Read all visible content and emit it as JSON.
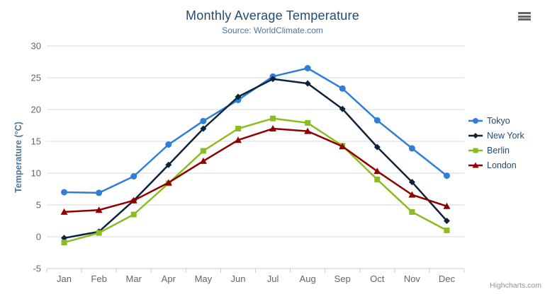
{
  "header": {
    "title": "Monthly Average Temperature",
    "subtitle": "Source: WorldClimate.com"
  },
  "icons": {
    "menu": "hamburger-icon"
  },
  "credit": {
    "label": "Highcharts.com"
  },
  "colors": {
    "title": "#274b6d",
    "subtitle": "#4d759e",
    "axis_label": "#666666",
    "axis_title": "#4d759e",
    "grid": "#d8d8d8",
    "axis_line": "#c0d0e0",
    "credit": "#909090",
    "legend_text": "#274b6d"
  },
  "chart_data": {
    "type": "line",
    "title": "Monthly Average Temperature",
    "subtitle": "Source: WorldClimate.com",
    "categories": [
      "Jan",
      "Feb",
      "Mar",
      "Apr",
      "May",
      "Jun",
      "Jul",
      "Aug",
      "Sep",
      "Oct",
      "Nov",
      "Dec"
    ],
    "series": [
      {
        "name": "Tokyo",
        "color": "#2f7ed8",
        "marker": "circle",
        "values": [
          7.0,
          6.9,
          9.5,
          14.5,
          18.2,
          21.5,
          25.2,
          26.5,
          23.3,
          18.3,
          13.9,
          9.6
        ]
      },
      {
        "name": "New York",
        "color": "#0d233a",
        "marker": "diamond",
        "values": [
          -0.2,
          0.8,
          5.7,
          11.3,
          17.0,
          22.0,
          24.8,
          24.1,
          20.1,
          14.1,
          8.6,
          2.5
        ]
      },
      {
        "name": "Berlin",
        "color": "#8bbc21",
        "marker": "square",
        "values": [
          -0.9,
          0.6,
          3.5,
          8.4,
          13.5,
          17.0,
          18.6,
          17.9,
          14.3,
          9.0,
          3.9,
          1.0
        ]
      },
      {
        "name": "London",
        "color": "#910000",
        "marker": "triangle",
        "values": [
          3.9,
          4.2,
          5.7,
          8.5,
          11.9,
          15.2,
          17.0,
          16.6,
          14.2,
          10.3,
          6.6,
          4.8
        ]
      }
    ],
    "xlabel": "",
    "ylabel": "Temperature (°C)",
    "ylim": [
      -5,
      30
    ],
    "yticks": [
      -5,
      0,
      5,
      10,
      15,
      20,
      25,
      30
    ],
    "grid": true,
    "legend_position": "right"
  }
}
